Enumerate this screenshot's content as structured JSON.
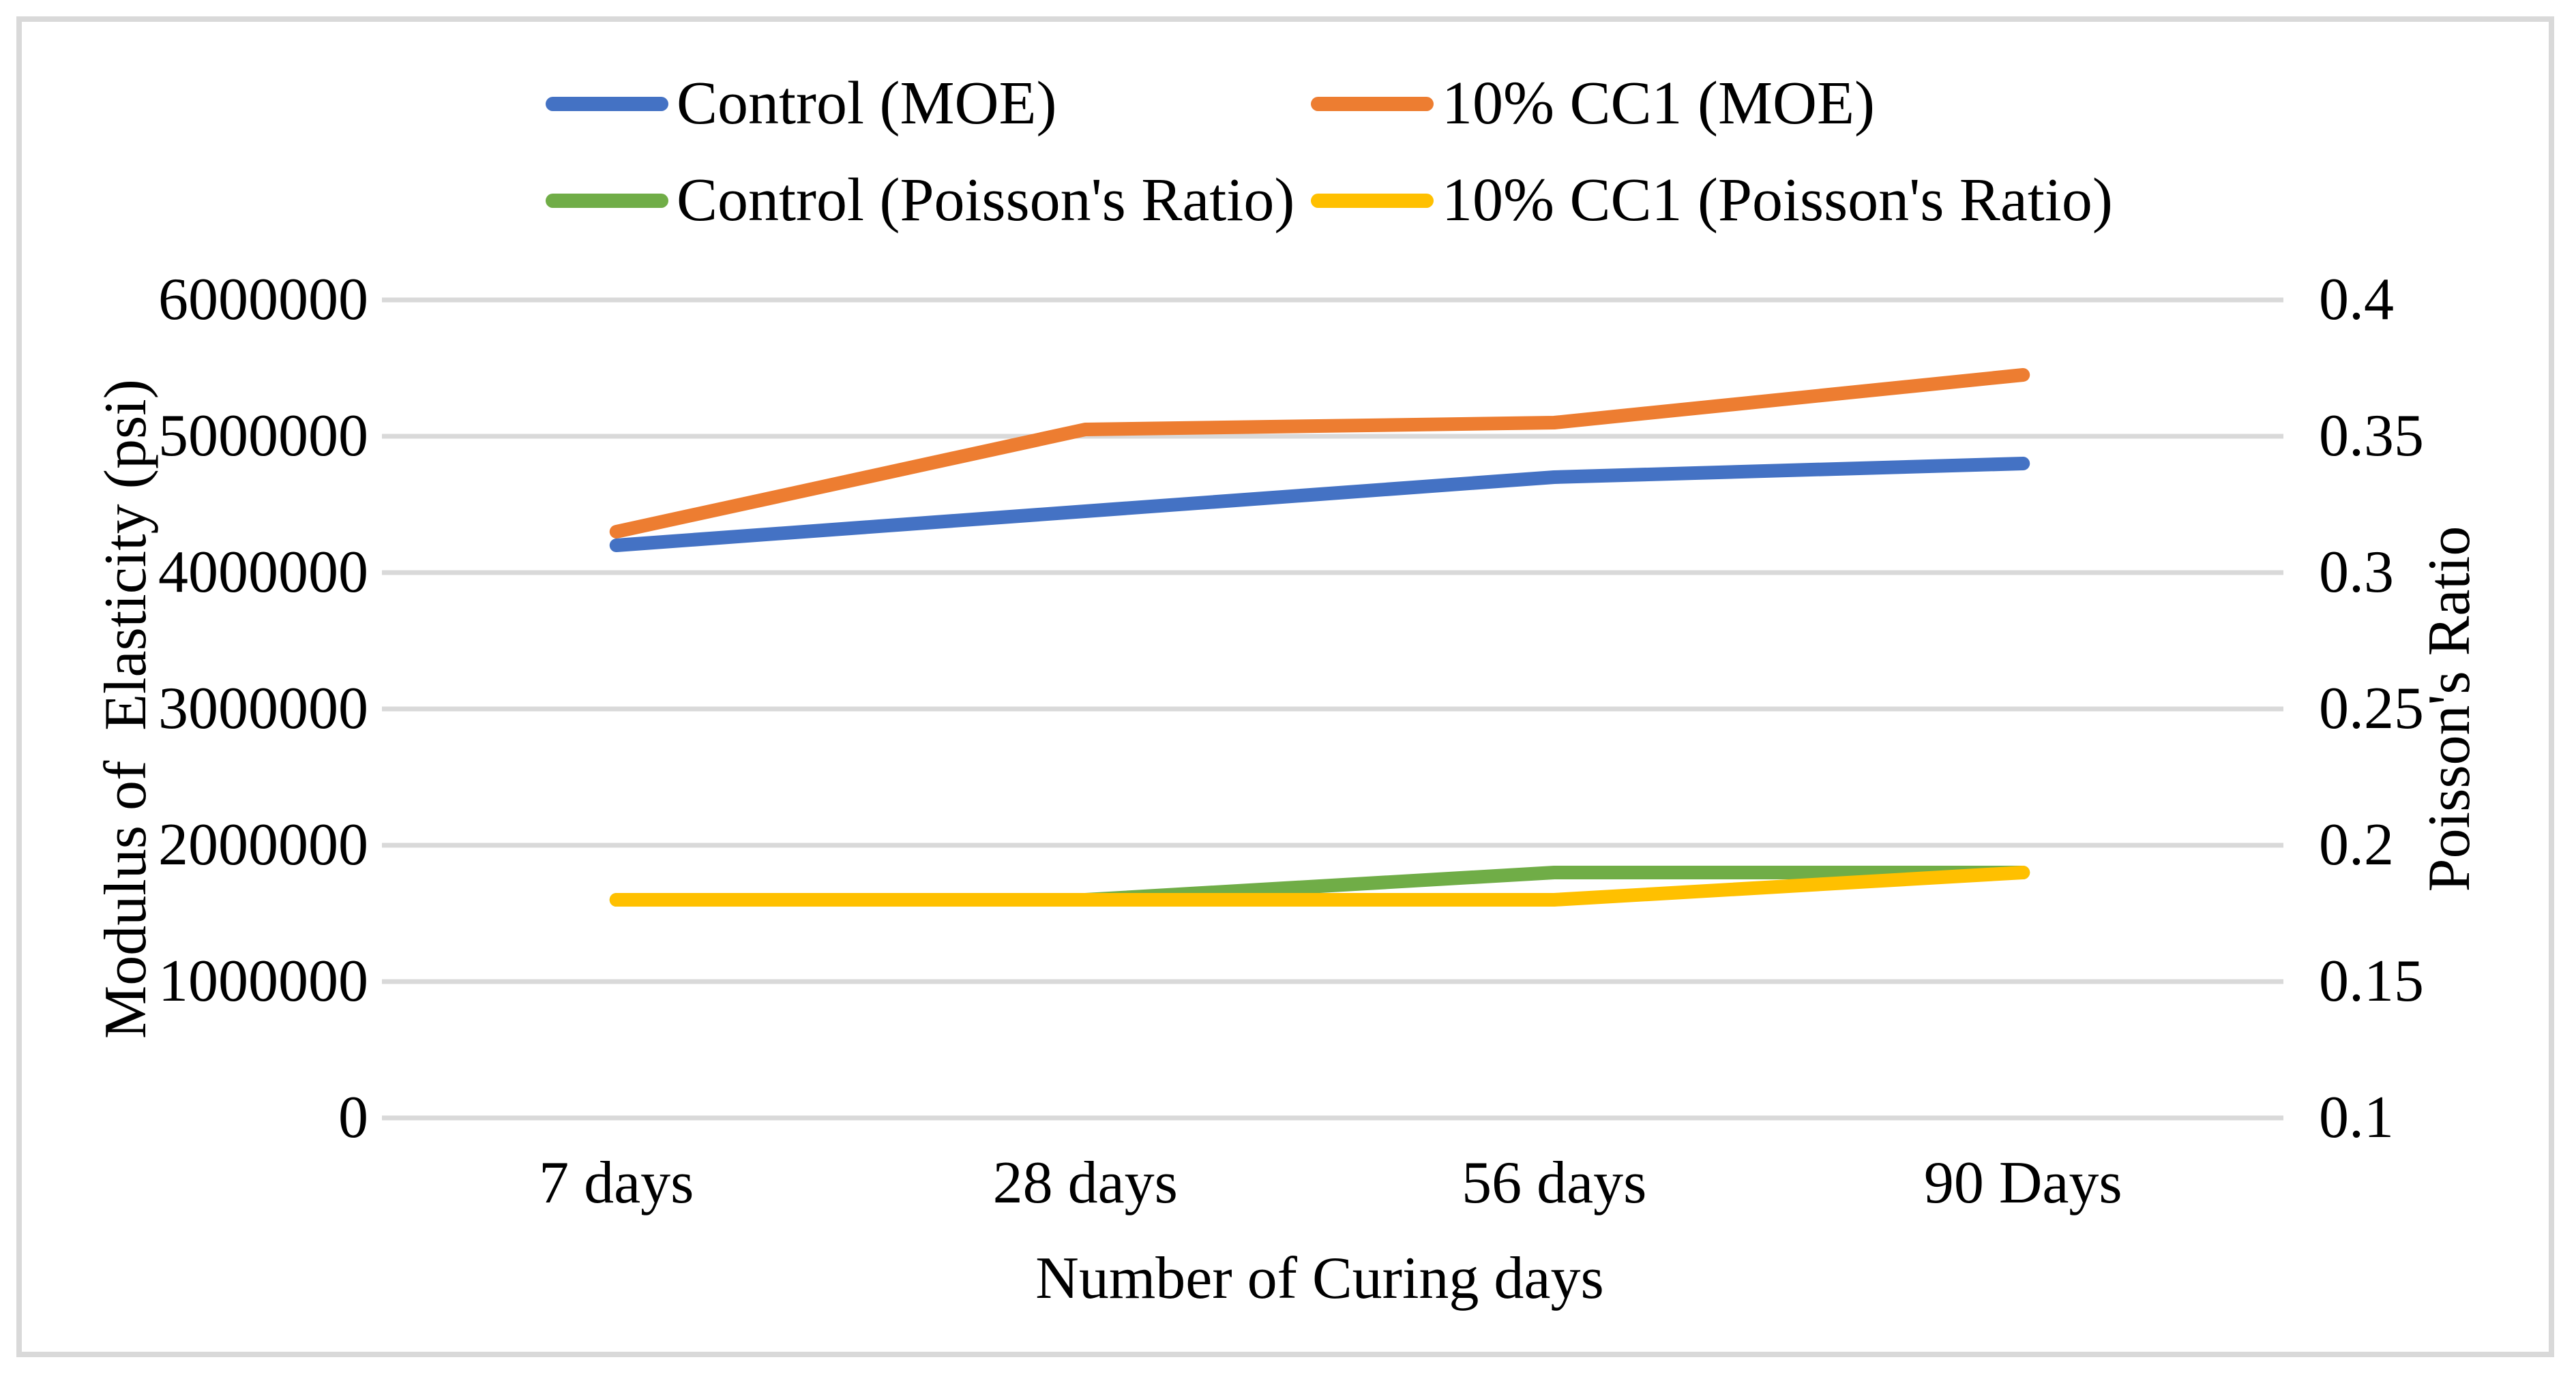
{
  "styles": {
    "background": "#ffffff",
    "border_color": "#d9d9d9",
    "grid_color": "#d9d9d9",
    "text_color": "#000000"
  },
  "chart_data": {
    "type": "line",
    "categories": [
      "7 days",
      "28 days",
      "56 days",
      "90 Days"
    ],
    "series": [
      {
        "name": "Control (MOE)",
        "axis": "left",
        "color": "#4472C4",
        "values": [
          4200000,
          4450000,
          4700000,
          4800000
        ]
      },
      {
        "name": "10% CC1 (MOE)",
        "axis": "left",
        "color": "#ED7D31",
        "values": [
          4300000,
          5050000,
          5100000,
          5450000
        ]
      },
      {
        "name": "Control (Poisson's Ratio)",
        "axis": "right",
        "color": "#70AD47",
        "values": [
          0.18,
          0.18,
          0.19,
          0.19
        ]
      },
      {
        "name": "10% CC1 (Poisson's Ratio)",
        "axis": "right",
        "color": "#FFC000",
        "values": [
          0.18,
          0.18,
          0.18,
          0.19
        ]
      }
    ],
    "left_axis": {
      "title": "Modulus of  Elasticity (psi)",
      "min": 0,
      "max": 6000000,
      "step": 1000000,
      "tick_labels": [
        "0",
        "1000000",
        "2000000",
        "3000000",
        "4000000",
        "5000000",
        "6000000"
      ]
    },
    "right_axis": {
      "title": "Poisson's Ratio",
      "min": 0.1,
      "max": 0.4,
      "step": 0.05,
      "tick_labels": [
        "0.1",
        "0.15",
        "0.2",
        "0.25",
        "0.3",
        "0.35",
        "0.4"
      ]
    },
    "x_axis": {
      "title": "Number of Curing days"
    },
    "grid": true,
    "legend_position": "top"
  }
}
